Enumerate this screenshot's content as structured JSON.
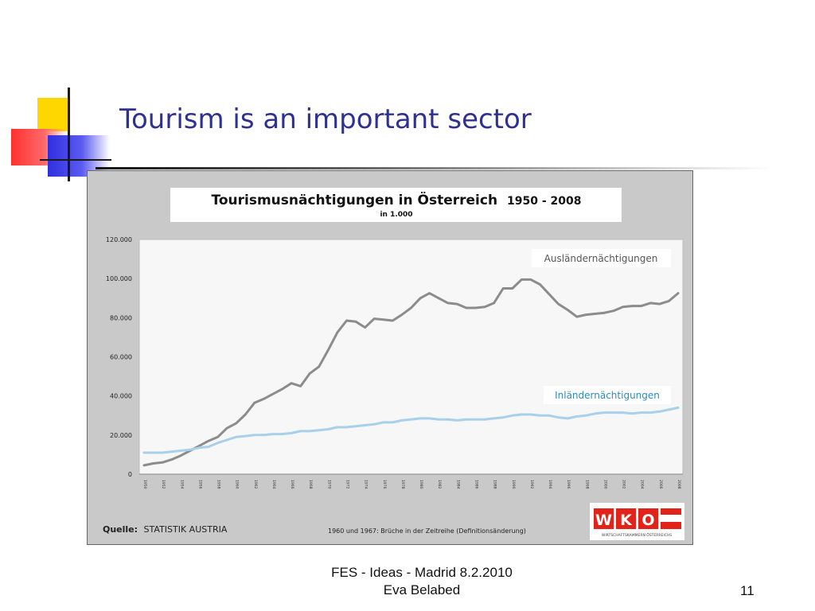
{
  "slide": {
    "title": "Tourism is an important sector",
    "footer_line1": "FES - Ideas - Madrid 8.2.2010",
    "footer_line2": "Eva Belabed",
    "page_number": "11"
  },
  "chart_data": {
    "type": "line",
    "title": "Tourismusnächtigungen in Österreich",
    "title_years": "1950 - 2008",
    "subtitle": "in 1.000",
    "source_label": "Quelle:",
    "source_text": "STATISTIK AUSTRIA",
    "footnote": "1960 und 1967: Brüche in der Zeitreihe (Definitionsänderung)",
    "logo_letters": [
      "W",
      "K",
      "O"
    ],
    "logo_caption": "WIRTSCHAFTSKAMMERN ÖSTERREICHS",
    "ylim": [
      0,
      120000
    ],
    "yticks": [
      "0",
      "20.000",
      "40.000",
      "60.000",
      "80.000",
      "100.000",
      "120.000"
    ],
    "xlim": [
      1950,
      2008
    ],
    "xticks": [
      "1950",
      "1952",
      "1954",
      "1956",
      "1958",
      "1960",
      "1962",
      "1964",
      "1966",
      "1968",
      "1970",
      "1972",
      "1974",
      "1976",
      "1978",
      "1980",
      "1982",
      "1984",
      "1986",
      "1988",
      "1990",
      "1992",
      "1994",
      "1996",
      "1998",
      "2000",
      "2002",
      "2004",
      "2006",
      "2008"
    ],
    "grid": false,
    "x": [
      1950,
      1951,
      1952,
      1953,
      1954,
      1955,
      1956,
      1957,
      1958,
      1959,
      1960,
      1961,
      1962,
      1963,
      1964,
      1965,
      1966,
      1967,
      1968,
      1969,
      1970,
      1971,
      1972,
      1973,
      1974,
      1975,
      1976,
      1977,
      1978,
      1979,
      1980,
      1981,
      1982,
      1983,
      1984,
      1985,
      1986,
      1987,
      1988,
      1989,
      1990,
      1991,
      1992,
      1993,
      1994,
      1995,
      1996,
      1997,
      1998,
      1999,
      2000,
      2001,
      2002,
      2003,
      2004,
      2005,
      2006,
      2007,
      2008
    ],
    "series": [
      {
        "name": "Ausländernächtigungen",
        "color": "#8c8c8c",
        "label_color": "#555555",
        "values": [
          4500,
          5500,
          6000,
          7500,
          9500,
          12000,
          14500,
          17000,
          19000,
          23500,
          26000,
          30500,
          36500,
          38500,
          41000,
          43500,
          46500,
          45000,
          51500,
          55000,
          63500,
          72500,
          78500,
          78000,
          75000,
          79500,
          79000,
          78500,
          81500,
          85000,
          90000,
          92500,
          90000,
          87500,
          87000,
          85000,
          85000,
          85500,
          87500,
          95000,
          95000,
          99500,
          99500,
          97000,
          92000,
          87000,
          84000,
          80500,
          81500,
          82000,
          82500,
          83500,
          85500,
          86000,
          86000,
          87500,
          87000,
          88500,
          92500
        ]
      },
      {
        "name": "Inländernächtigungen",
        "color": "#a8d0ea",
        "label_color": "#2a8bbf",
        "values": [
          11000,
          11000,
          11000,
          11500,
          12000,
          12500,
          13500,
          14000,
          16000,
          17500,
          19000,
          19500,
          20000,
          20000,
          20500,
          20500,
          21000,
          22000,
          22000,
          22500,
          23000,
          24000,
          24000,
          24500,
          25000,
          25500,
          26500,
          26500,
          27500,
          28000,
          28500,
          28500,
          28000,
          28000,
          27500,
          28000,
          28000,
          28000,
          28500,
          29000,
          30000,
          30500,
          30500,
          30000,
          30000,
          29000,
          28500,
          29500,
          30000,
          31000,
          31500,
          31500,
          31500,
          31000,
          31500,
          31500,
          32000,
          33000,
          34000
        ]
      }
    ]
  }
}
